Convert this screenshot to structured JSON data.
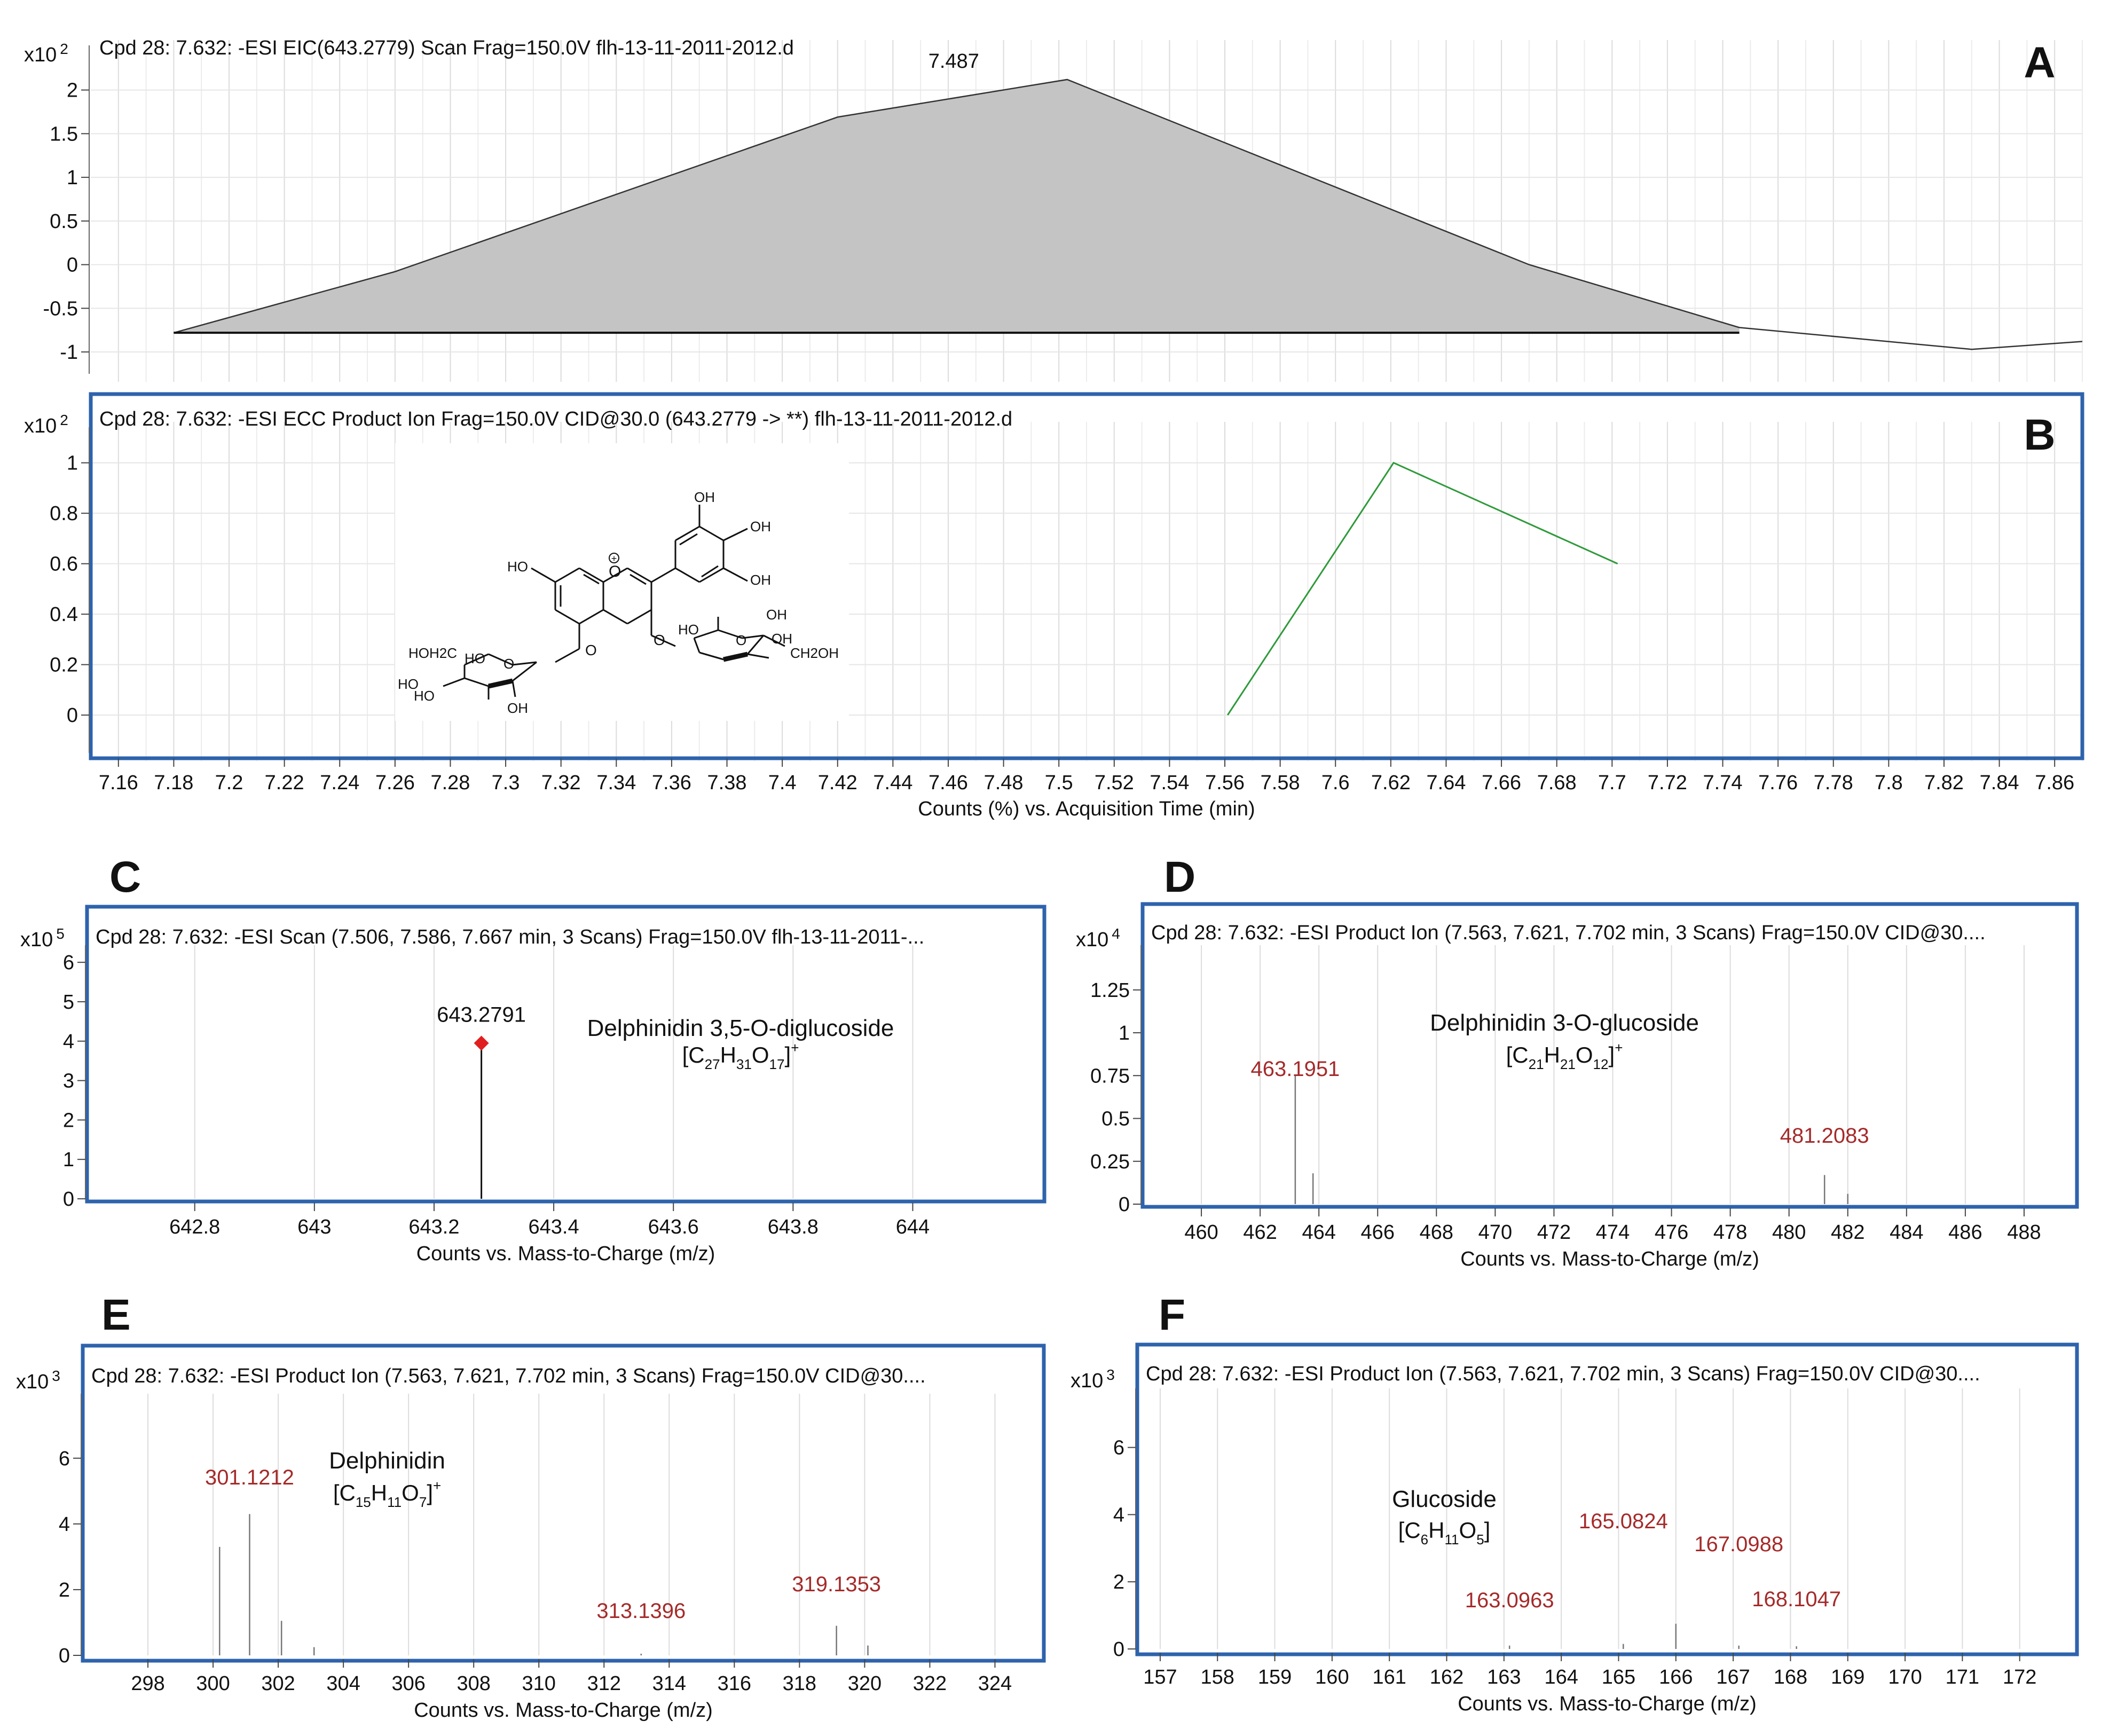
{
  "chart_data": [
    {
      "id": "A",
      "type": "area",
      "panel_label": "A",
      "title": "Cpd 28: 7.632: -ESI EIC(643.2779) Scan Frag=150.0V flh-13-11-2011-2012.d",
      "y_multiplier": "x10 2",
      "xlabel": "",
      "ylabel": "",
      "xlim": [
        7.15,
        7.87
      ],
      "ylim": [
        -1.25,
        2.45
      ],
      "yticks": [
        -1,
        -0.5,
        0,
        0.5,
        1,
        1.5,
        2
      ],
      "grid": true,
      "peak_label": "7.487",
      "series": [
        {
          "x": [
            7.18,
            7.26,
            7.42,
            7.503,
            7.67,
            7.746,
            7.83,
            7.87
          ],
          "y": [
            -0.78,
            -0.08,
            1.69,
            2.12,
            0.0,
            -0.72,
            -0.97,
            -0.88
          ]
        }
      ],
      "baseline": {
        "x": [
          7.18,
          7.746
        ],
        "y": [
          -0.78,
          -0.78
        ]
      }
    },
    {
      "id": "B",
      "type": "line",
      "panel_label": "B",
      "title": "Cpd 28: 7.632: -ESI ECC Product Ion Frag=150.0V CID@30.0 (643.2779 -> **) flh-13-11-2011-2012.d",
      "y_multiplier": "x10 2",
      "xlabel": "Counts (%) vs. Acquisition Time (min)",
      "xlim": [
        7.15,
        7.87
      ],
      "ylim": [
        -0.15,
        1.12
      ],
      "yticks": [
        0,
        0.2,
        0.4,
        0.6,
        0.8,
        1
      ],
      "xticks": [
        "7.16",
        "7.18",
        "7.2",
        "7.22",
        "7.24",
        "7.26",
        "7.28",
        "7.3",
        "7.32",
        "7.34",
        "7.36",
        "7.38",
        "7.4",
        "7.42",
        "7.44",
        "7.46",
        "7.48",
        "7.5",
        "7.52",
        "7.54",
        "7.56",
        "7.58",
        "7.6",
        "7.62",
        "7.64",
        "7.66",
        "7.68",
        "7.7",
        "7.72",
        "7.74",
        "7.76",
        "7.78",
        "7.8",
        "7.82",
        "7.84",
        "7.86"
      ],
      "grid": true,
      "line_color": "#2e9a3a",
      "series": [
        {
          "x": [
            7.561,
            7.621,
            7.702
          ],
          "y": [
            0.0,
            1.0,
            0.6
          ]
        }
      ],
      "structure_labels": [
        "OH",
        "OH",
        "OH",
        "HO",
        "HO",
        "HOH2C",
        "HO",
        "HO",
        "OH",
        "HO",
        "OH",
        "OH",
        "CH2OH"
      ]
    },
    {
      "id": "C",
      "type": "bar",
      "panel_label": "C",
      "title": "Cpd 28: 7.632: -ESI Scan (7.506, 7.586, 7.667 min, 3 Scans) Frag=150.0V flh-13-11-2011-...",
      "y_multiplier": "x10 5",
      "xlabel": "Counts vs. Mass-to-Charge (m/z)",
      "xlim": [
        642.62,
        644.22
      ],
      "ylim": [
        0,
        6.3
      ],
      "yticks": [
        0,
        1,
        2,
        3,
        4,
        5,
        6
      ],
      "xticks": [
        "642.8",
        "643",
        "643.2",
        "643.4",
        "643.6",
        "643.8",
        "644"
      ],
      "grid": true,
      "peaks": [
        {
          "x": 643.2791,
          "y": 3.95,
          "label": "643.2791",
          "marker": "#e02020"
        }
      ],
      "compound": "Delphinidin 3,5-O-diglucoside",
      "formula": "[C27H31O17]+"
    },
    {
      "id": "D",
      "type": "bar",
      "panel_label": "D",
      "title": "Cpd 28: 7.632: -ESI Product Ion (7.563, 7.621, 7.702 min, 3 Scans) Frag=150.0V CID@30....",
      "y_multiplier": "x10 4",
      "xlabel": "Counts vs. Mass-to-Charge (m/z)",
      "xlim": [
        458.0,
        489.8
      ],
      "ylim": [
        0,
        1.48
      ],
      "yticks": [
        0,
        0.25,
        0.5,
        0.75,
        1,
        1.25
      ],
      "xticks": [
        "460",
        "462",
        "464",
        "466",
        "468",
        "470",
        "472",
        "474",
        "476",
        "478",
        "480",
        "482",
        "484",
        "486",
        "488"
      ],
      "grid": true,
      "peaks": [
        {
          "x": 463.1951,
          "y": 0.75,
          "label": "463.1951"
        },
        {
          "x": 463.8,
          "y": 0.18,
          "label": ""
        },
        {
          "x": 481.2083,
          "y": 0.17,
          "label": "481.2083"
        },
        {
          "x": 482.0,
          "y": 0.06,
          "label": ""
        }
      ],
      "compound": "Delphinidin 3-O-glucoside",
      "formula": "[C21H21O12]+"
    },
    {
      "id": "E",
      "type": "bar",
      "panel_label": "E",
      "title": "Cpd 28: 7.632: -ESI Product Ion (7.563, 7.621, 7.702 min, 3 Scans) Frag=150.0V CID@30....",
      "y_multiplier": "x10 3",
      "xlabel": "Counts vs. Mass-to-Charge (m/z)",
      "xlim": [
        296.0,
        325.5
      ],
      "ylim": [
        0,
        7.8
      ],
      "yticks": [
        0,
        2,
        4,
        6
      ],
      "xticks": [
        "298",
        "300",
        "302",
        "304",
        "306",
        "308",
        "310",
        "312",
        "314",
        "316",
        "318",
        "320",
        "322",
        "324"
      ],
      "grid": true,
      "peaks": [
        {
          "x": 300.2,
          "y": 3.3,
          "label": ""
        },
        {
          "x": 301.1212,
          "y": 4.3,
          "label": "301.1212"
        },
        {
          "x": 302.1,
          "y": 1.05,
          "label": ""
        },
        {
          "x": 303.1,
          "y": 0.25,
          "label": ""
        },
        {
          "x": 313.1396,
          "y": 0.05,
          "label": "313.1396"
        },
        {
          "x": 319.1353,
          "y": 0.9,
          "label": "319.1353"
        },
        {
          "x": 320.1,
          "y": 0.3,
          "label": ""
        }
      ],
      "compound": "Delphinidin",
      "formula": "[C15H11O7]+"
    },
    {
      "id": "F",
      "type": "bar",
      "panel_label": "F",
      "title": "Cpd 28: 7.632: -ESI Product Ion (7.563, 7.621, 7.702 min, 3 Scans) Frag=150.0V CID@30....",
      "y_multiplier": "x10 3",
      "xlabel": "Counts vs. Mass-to-Charge (m/z)",
      "xlim": [
        156.6,
        173.0
      ],
      "ylim": [
        0,
        7.6
      ],
      "yticks": [
        0,
        2,
        4,
        6
      ],
      "xticks": [
        "157",
        "158",
        "159",
        "160",
        "161",
        "162",
        "163",
        "164",
        "165",
        "166",
        "167",
        "168",
        "169",
        "170",
        "171",
        "172"
      ],
      "grid": true,
      "peaks": [
        {
          "x": 163.0963,
          "y": 0.1,
          "label": "163.0963"
        },
        {
          "x": 165.0824,
          "y": 0.15,
          "label": "165.0824"
        },
        {
          "x": 166.0,
          "y": 0.75,
          "label": ""
        },
        {
          "x": 167.0988,
          "y": 0.1,
          "label": "167.0988"
        },
        {
          "x": 168.1047,
          "y": 0.08,
          "label": "168.1047"
        }
      ],
      "compound": "Glucoside",
      "formula": "[C6H11O5]"
    }
  ],
  "colors": {
    "frame": "#2e63ad",
    "grid": "#dcdcdc",
    "fill": "#c4c4c4",
    "peak_label": "#a52a2a",
    "green_line": "#2e9a3a",
    "marker": "#e02020"
  }
}
